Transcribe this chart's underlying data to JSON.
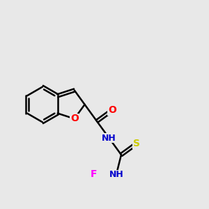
{
  "bg_color": "#e8e8e8",
  "bond_color": "#000000",
  "bond_width": 1.8,
  "atom_colors": {
    "O": "#ff0000",
    "N": "#0000cc",
    "S": "#cccc00",
    "F": "#ff00ff",
    "C": "#000000"
  },
  "font_size": 10,
  "fig_size": [
    3.0,
    3.0
  ],
  "dpi": 100,
  "xlim": [
    0.0,
    10.0
  ],
  "ylim": [
    1.5,
    8.5
  ]
}
